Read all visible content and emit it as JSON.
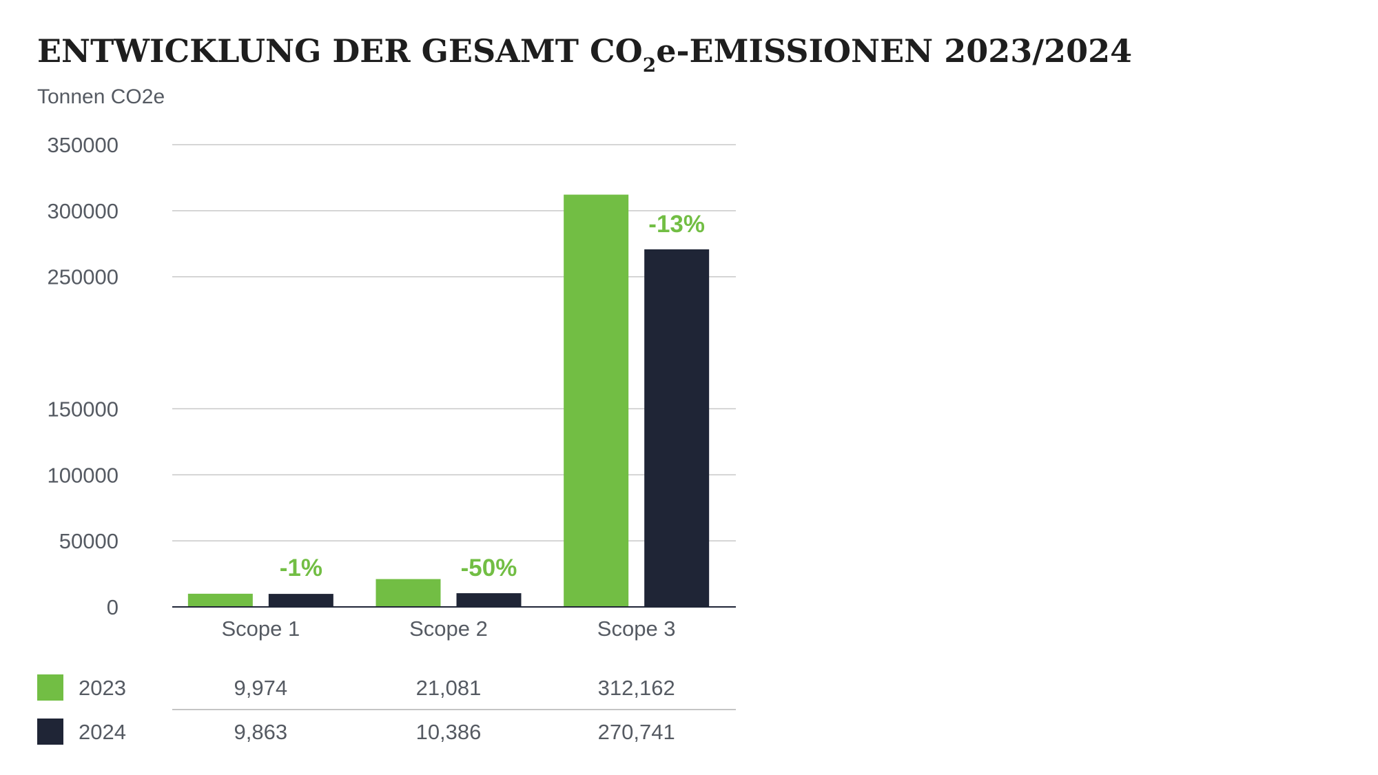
{
  "chart_data": {
    "type": "bar",
    "title_main": "ENTWICKLUNG DER GESAMT CO",
    "title_sub": "2",
    "title_rest": "e-EMISSIONEN 2023/2024",
    "ylabel": "Tonnen CO2e",
    "ylim": [
      0,
      350000
    ],
    "yticks": [
      {
        "value": 350000,
        "label": "350000"
      },
      {
        "value": 300000,
        "label": "300000"
      },
      {
        "value": 250000,
        "label": "250000"
      },
      {
        "value": 150000,
        "label": "150000"
      },
      {
        "value": 100000,
        "label": "100000"
      },
      {
        "value": 50000,
        "label": "50000"
      },
      {
        "value": 0,
        "label": "0"
      }
    ],
    "categories": [
      "Scope 1",
      "Scope 2",
      "Scope 3"
    ],
    "series": [
      {
        "name": "2023",
        "color": "#72be44",
        "values": [
          9974,
          21081,
          312162
        ],
        "labels": [
          "9,974",
          "21,081",
          "312,162"
        ]
      },
      {
        "name": "2024",
        "color": "#1f2536",
        "values": [
          9863,
          10386,
          270741
        ],
        "labels": [
          "9,863",
          "10,386",
          "270,741"
        ]
      }
    ],
    "changes": [
      "-1%",
      "-50%",
      "-13%"
    ],
    "change_color": "#72be44",
    "grid": true,
    "legend": "table-below"
  }
}
